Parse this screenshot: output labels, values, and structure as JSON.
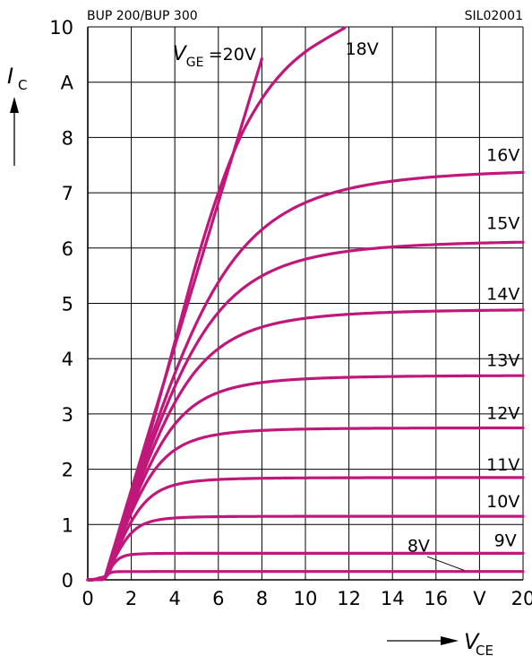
{
  "chart_data": {
    "type": "line",
    "header_left": "BUP 200/BUP 300",
    "header_right": "SIL02001",
    "ylabel": {
      "symbol": "I",
      "subscript": "C",
      "unit": "A"
    },
    "xlabel": {
      "symbol": "V",
      "subscript": "CE",
      "unit": "V"
    },
    "xlim": [
      0,
      20
    ],
    "ylim": [
      0,
      10
    ],
    "xticks": [
      "0",
      "2",
      "4",
      "6",
      "8",
      "10",
      "12",
      "14",
      "16",
      "V",
      "20"
    ],
    "yticks": [
      "0",
      "1",
      "2",
      "3",
      "4",
      "5",
      "6",
      "7",
      "8",
      "A",
      "10"
    ],
    "grid": true,
    "curve_color": "#c0187a",
    "series": [
      {
        "name": "V_GE=20V",
        "label_prefix": "V",
        "label_sub": "GE",
        "label_text": "=20V",
        "kind": "linear",
        "slope": 1.3,
        "end_x": 8.0
      },
      {
        "name": "18V",
        "label_text": "18V",
        "kind": "curve",
        "points": [
          [
            0,
            0
          ],
          [
            0.5,
            0.03
          ],
          [
            1,
            0.15
          ],
          [
            1.5,
            0.75
          ],
          [
            2,
            1.45
          ],
          [
            3,
            2.85
          ],
          [
            4,
            4.3
          ],
          [
            5,
            5.75
          ],
          [
            6,
            7.0
          ],
          [
            7,
            8.0
          ],
          [
            8,
            8.7
          ],
          [
            9,
            9.2
          ],
          [
            10,
            9.55
          ],
          [
            11,
            9.8
          ],
          [
            11.8,
            9.98
          ]
        ]
      },
      {
        "name": "16V",
        "label_text": "16V",
        "kind": "sat",
        "sat": 7.45,
        "slope": 1.2
      },
      {
        "name": "15V",
        "label_text": "15V",
        "kind": "sat",
        "sat": 6.15,
        "slope": 1.15
      },
      {
        "name": "14V",
        "label_text": "14V",
        "kind": "sat",
        "sat": 4.9,
        "slope": 1.1
      },
      {
        "name": "13V",
        "label_text": "13V",
        "kind": "sat",
        "sat": 3.7,
        "slope": 1.05
      },
      {
        "name": "12V",
        "label_text": "12V",
        "kind": "sat",
        "sat": 2.75,
        "slope": 1.0
      },
      {
        "name": "11V",
        "label_text": "11V",
        "kind": "sat",
        "sat": 1.85,
        "slope": 0.9
      },
      {
        "name": "10V",
        "label_text": "10V",
        "kind": "sat",
        "sat": 1.15,
        "slope": 0.8
      },
      {
        "name": "9V",
        "label_text": "9V",
        "kind": "sat",
        "sat": 0.48,
        "slope": 0.7
      },
      {
        "name": "8V",
        "label_text": "8V",
        "kind": "sat",
        "sat": 0.15,
        "slope": 0.6
      }
    ]
  }
}
